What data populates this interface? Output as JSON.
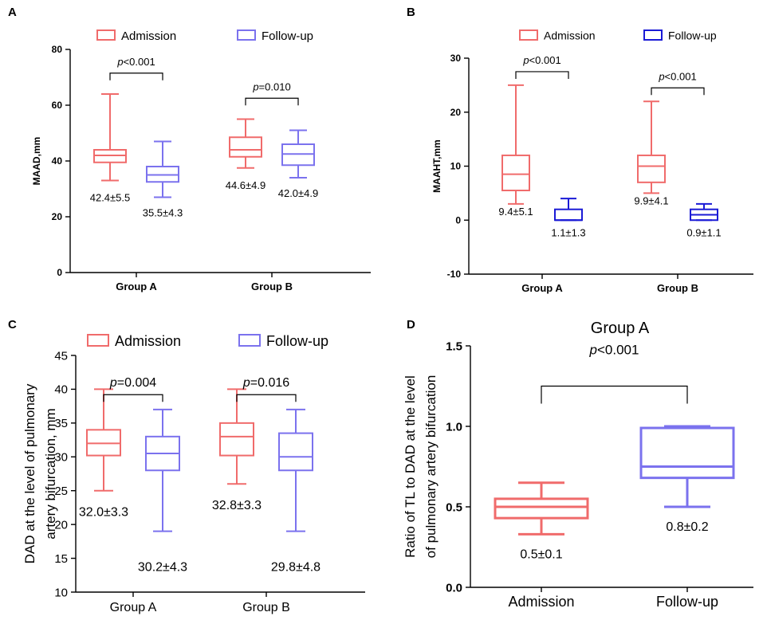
{
  "colors": {
    "admission": "#f06b6b",
    "followup_a": "#7b72ee",
    "followup_b": "#1a1ad6",
    "axis": "#000000"
  },
  "chart_data": [
    {
      "panel": "A",
      "type": "box",
      "ylabel": "MAAD,mm",
      "ylim": [
        0,
        80
      ],
      "yticks": [
        0,
        20,
        40,
        60,
        80
      ],
      "categories": [
        "Group A",
        "Group B"
      ],
      "legend": [
        "Admission",
        "Follow-up"
      ],
      "series": [
        {
          "name": "Admission",
          "boxes": [
            {
              "min": 33,
              "q1": 39.5,
              "median": 42,
              "q3": 44,
              "max": 64,
              "label": "42.4±5.5"
            },
            {
              "min": 37.5,
              "q1": 41.5,
              "median": 44,
              "q3": 48.5,
              "max": 55,
              "label": "44.6±4.9"
            }
          ]
        },
        {
          "name": "Follow-up",
          "boxes": [
            {
              "min": 27,
              "q1": 32.5,
              "median": 35,
              "q3": 38,
              "max": 47,
              "label": "35.5±4.3"
            },
            {
              "min": 34,
              "q1": 38.5,
              "median": 42.5,
              "q3": 46,
              "max": 51,
              "label": "42.0±4.9"
            }
          ]
        }
      ],
      "annotations": [
        {
          "group": 0,
          "prefix": "p",
          "text": "<0.001",
          "y": 71.5
        },
        {
          "group": 1,
          "prefix": "p",
          "text": "=0.010",
          "y": 62.5
        }
      ]
    },
    {
      "panel": "B",
      "type": "box",
      "ylabel": "MAAHT,mm",
      "ylim": [
        -10,
        30
      ],
      "yticks": [
        -10,
        0,
        10,
        20,
        30
      ],
      "categories": [
        "Group A",
        "Group B"
      ],
      "legend": [
        "Admission",
        "Follow-up"
      ],
      "series": [
        {
          "name": "Admission",
          "boxes": [
            {
              "min": 3,
              "q1": 5.5,
              "median": 8.5,
              "q3": 12,
              "max": 25,
              "label": "9.4±5.1"
            },
            {
              "min": 5,
              "q1": 7,
              "median": 10,
              "q3": 12,
              "max": 22,
              "label": "9.9±4.1"
            }
          ]
        },
        {
          "name": "Follow-up",
          "boxes": [
            {
              "min": 0,
              "q1": 0,
              "median": 0,
              "q3": 2,
              "max": 4,
              "label": "1.1±1.3"
            },
            {
              "min": 0,
              "q1": 0,
              "median": 1,
              "q3": 2,
              "max": 3,
              "label": "0.9±1.1"
            }
          ]
        }
      ],
      "annotations": [
        {
          "group": 0,
          "prefix": "p",
          "text": "<0.001",
          "y": 27.5
        },
        {
          "group": 1,
          "prefix": "p",
          "text": "<0.001",
          "y": 24.5
        }
      ]
    },
    {
      "panel": "C",
      "type": "box",
      "ylabel": "DAD at the level of pulmonary artery bifurcation, mm",
      "ylabel_lines": [
        "DAD at the level of pulmonary",
        "artery bifurcation, mm"
      ],
      "ylim": [
        10,
        45
      ],
      "yticks": [
        10,
        15,
        20,
        25,
        30,
        35,
        40,
        45
      ],
      "categories": [
        "Group A",
        "Group B"
      ],
      "legend": [
        "Admission",
        "Follow-up"
      ],
      "series": [
        {
          "name": "Admission",
          "boxes": [
            {
              "min": 25,
              "q1": 30.2,
              "median": 32,
              "q3": 34,
              "max": 40,
              "label": "32.0±3.3"
            },
            {
              "min": 26,
              "q1": 30.2,
              "median": 33,
              "q3": 35,
              "max": 40,
              "label": "32.8±3.3"
            }
          ]
        },
        {
          "name": "Follow-up",
          "boxes": [
            {
              "min": 19,
              "q1": 28,
              "median": 30.5,
              "q3": 33,
              "max": 37,
              "label": "30.2±4.3"
            },
            {
              "min": 19,
              "q1": 28,
              "median": 30,
              "q3": 33.5,
              "max": 37,
              "label": "29.8±4.8"
            }
          ]
        }
      ],
      "annotations": [
        {
          "group": 0,
          "prefix": "p",
          "text": "=0.004",
          "y": 39.2
        },
        {
          "group": 1,
          "prefix": "p",
          "text": "=0.016",
          "y": 39.2
        }
      ]
    },
    {
      "panel": "D",
      "type": "box",
      "title": "Group A",
      "ylabel": "Ratio of TL to DAD at the level of pulmonary artery bifurcation",
      "ylabel_lines": [
        "Ratio of TL to DAD  at the level",
        "of pulmonary artery bifurcation"
      ],
      "ylim": [
        0,
        1.5
      ],
      "yticks": [
        0.0,
        0.5,
        1.0,
        1.5
      ],
      "ytick_labels": [
        "0.0",
        "0.5",
        "1.0",
        "1.5"
      ],
      "categories": [
        "Admission",
        "Follow-up"
      ],
      "series": [
        {
          "name": "Admission",
          "boxes": [
            {
              "min": 0.33,
              "q1": 0.43,
              "median": 0.5,
              "q3": 0.55,
              "max": 0.65,
              "label": "0.5±0.1"
            }
          ]
        },
        {
          "name": "Follow-up",
          "boxes": [
            {
              "min": 0.5,
              "q1": 0.68,
              "median": 0.75,
              "q3": 0.99,
              "max": 1.0,
              "label": "0.8±0.2"
            }
          ]
        }
      ],
      "annotations": [
        {
          "prefix": "p",
          "text": "<0.001",
          "y": 1.25
        }
      ]
    }
  ]
}
